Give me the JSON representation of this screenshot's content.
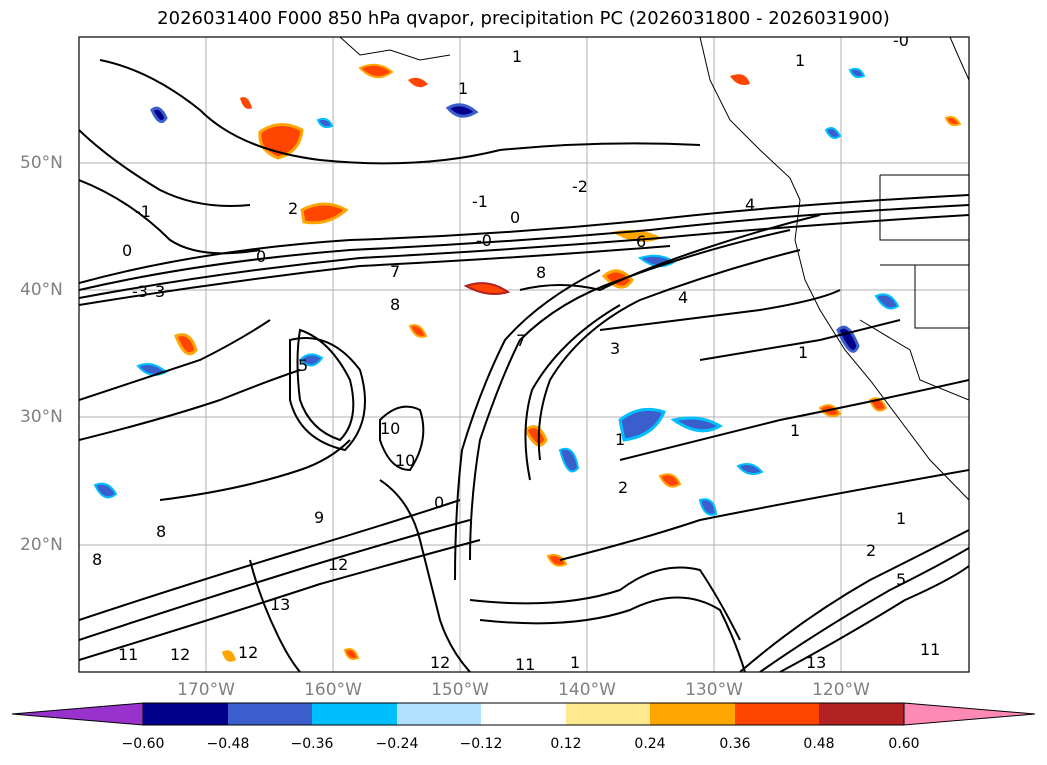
{
  "title": "2026031400 F000 850 hPa qvapor, precipitation PC (2026031800 - 2026031900)",
  "map": {
    "lat_labels": [
      "50°N",
      "40°N",
      "30°N",
      "20°N"
    ],
    "lon_labels": [
      "170°W",
      "160°W",
      "150°W",
      "140°W",
      "130°W",
      "120°W"
    ],
    "contour_labels": [
      "-0",
      "1",
      "1",
      "-2",
      "-1",
      "0",
      "2",
      "1",
      "0",
      "0",
      "4",
      "-0",
      "6",
      "-1",
      "7",
      "8",
      "-3",
      "3",
      "8",
      "4",
      "7",
      "5",
      "1",
      "1",
      "3",
      "10",
      "0",
      "10",
      "9",
      "8",
      "8",
      "1",
      "2",
      "1",
      "12",
      "13",
      "12",
      "12",
      "11",
      "12",
      "11",
      "1",
      "2",
      "5",
      "13",
      "11"
    ]
  },
  "colorbar": {
    "ticks": [
      "−0.60",
      "−0.48",
      "−0.36",
      "−0.24",
      "−0.12",
      "0.12",
      "0.24",
      "0.36",
      "0.48",
      "0.60"
    ],
    "colors": [
      "#9932cc",
      "#00008b",
      "#3a5fcd",
      "#00bfff",
      "#b0e2ff",
      "#ffffff",
      "#ffe98f",
      "#ffa500",
      "#ff4500",
      "#b22222",
      "#ff89b5"
    ]
  }
}
